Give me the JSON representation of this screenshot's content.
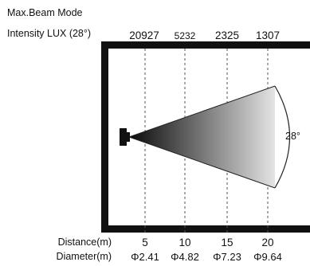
{
  "header": {
    "mode": "Max.Beam Mode",
    "intensity_label": "Intensity LUX (28°)"
  },
  "lux_values": [
    "20927",
    "5232",
    "2325",
    "1307"
  ],
  "rows": {
    "distance_label": "Distance(m)",
    "diameter_label": "Diameter(m)"
  },
  "distances": [
    "5",
    "10",
    "15",
    "20"
  ],
  "diameters": [
    "Φ2.41",
    "Φ4.82",
    "Φ7.23",
    "Φ9.64"
  ],
  "beam": {
    "angle_label": "28°",
    "gradient_start": "#0a0a0a",
    "gradient_end": "#e4e4e4"
  },
  "chart_data": {
    "type": "table",
    "columns": [
      "Distance(m)",
      "Diameter(m)",
      "Intensity LUX (28°)"
    ],
    "rows": [
      [
        5,
        "Φ2.41",
        20927
      ],
      [
        10,
        "Φ4.82",
        5232
      ],
      [
        15,
        "Φ7.23",
        2325
      ],
      [
        20,
        "Φ9.64",
        1307
      ]
    ]
  }
}
